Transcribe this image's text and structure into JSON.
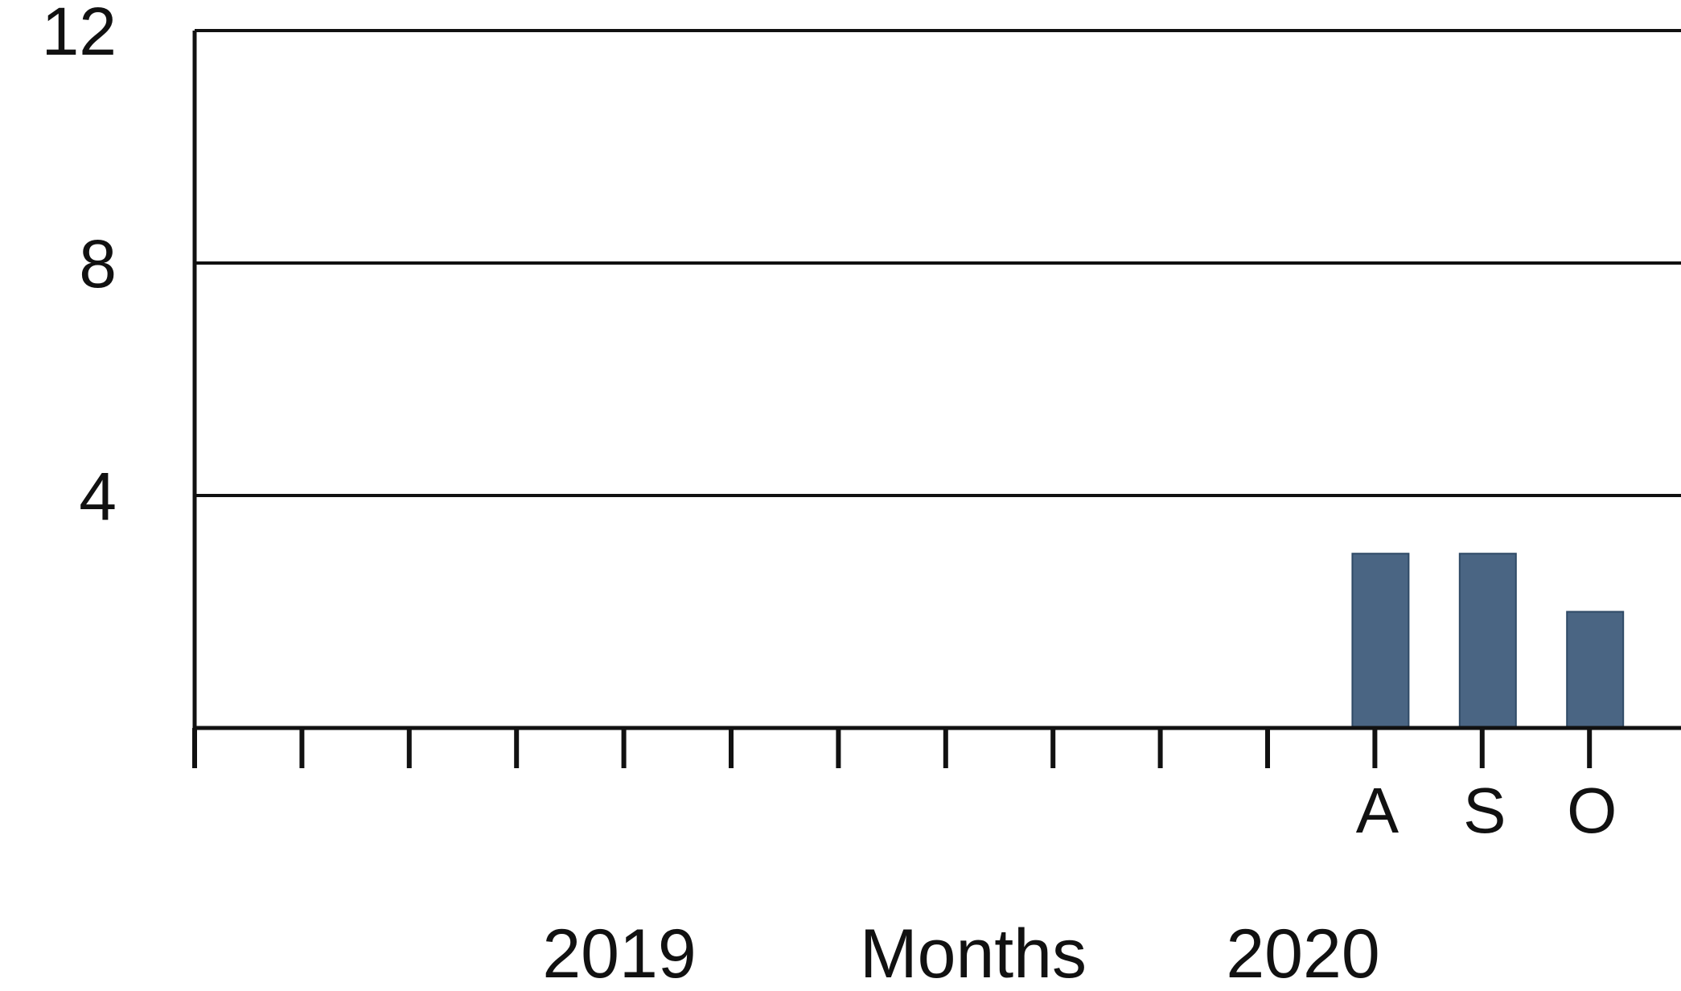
{
  "chart_data": {
    "type": "bar",
    "categories": [
      "",
      "",
      "",
      "",
      "",
      "",
      "",
      "",
      "",
      "",
      "",
      "A",
      "S",
      "O",
      "",
      ""
    ],
    "values": [
      null,
      null,
      null,
      null,
      null,
      null,
      null,
      null,
      null,
      null,
      null,
      3,
      3,
      2,
      null,
      null
    ],
    "bar_color": "#4a6583",
    "ylim": [
      0,
      12
    ],
    "yticks": [
      4,
      8,
      12
    ],
    "ytick_labels": [
      "4",
      "8",
      "12"
    ],
    "grid": "horizontal lines at 4, 8 and 12",
    "x_captions": {
      "year_start": "2019",
      "axis_label": "Months",
      "year_end": "2020"
    },
    "legend": "none",
    "title": ""
  }
}
